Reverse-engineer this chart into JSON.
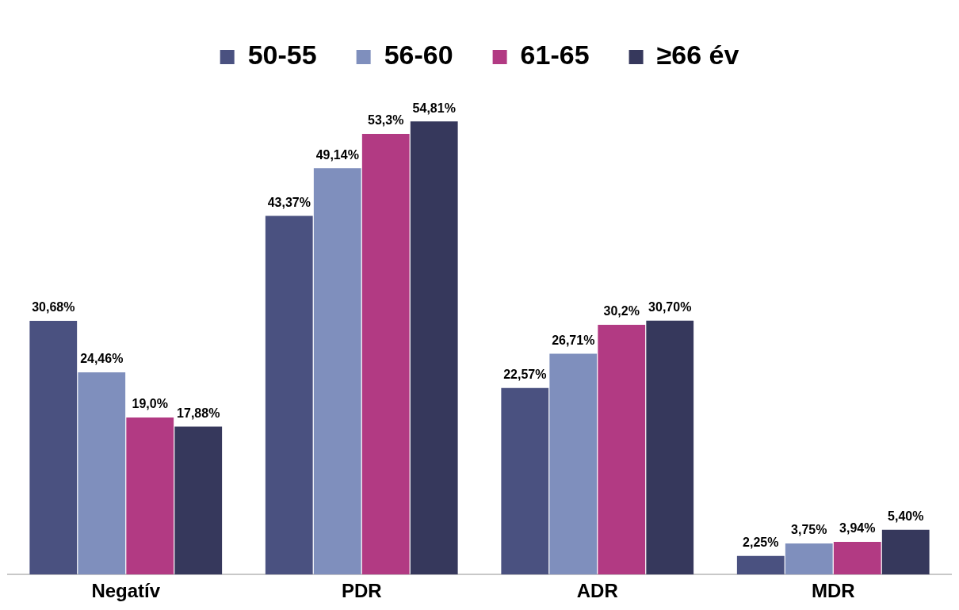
{
  "chart_data": {
    "type": "bar",
    "categories": [
      "Negatív",
      "PDR",
      "ADR",
      "MDR"
    ],
    "legend": "top",
    "grid": false,
    "series": [
      {
        "name": "50-55",
        "color": "#4a5180",
        "values": [
          30.68,
          43.37,
          22.57,
          2.25
        ],
        "value_labels": [
          "30,68%",
          "43,37%",
          "22,57%",
          "2,25%"
        ]
      },
      {
        "name": "56-60",
        "color": "#7f8fbd",
        "values": [
          24.46,
          49.14,
          26.71,
          3.75
        ],
        "value_labels": [
          "24,46%",
          "49,14%",
          "26,71%",
          "3,75%"
        ]
      },
      {
        "name": "61-65",
        "color": "#b23a83",
        "values": [
          19.0,
          53.3,
          30.2,
          3.94
        ],
        "value_labels": [
          "19,0%",
          "53,3%",
          "30,2%",
          "3,94%"
        ]
      },
      {
        "name": "≥66 év",
        "color": "#36385c",
        "values": [
          17.88,
          54.81,
          30.7,
          5.4
        ],
        "value_labels": [
          "17,88%",
          "54,81%",
          "30,70%",
          "5,40%"
        ]
      }
    ]
  }
}
